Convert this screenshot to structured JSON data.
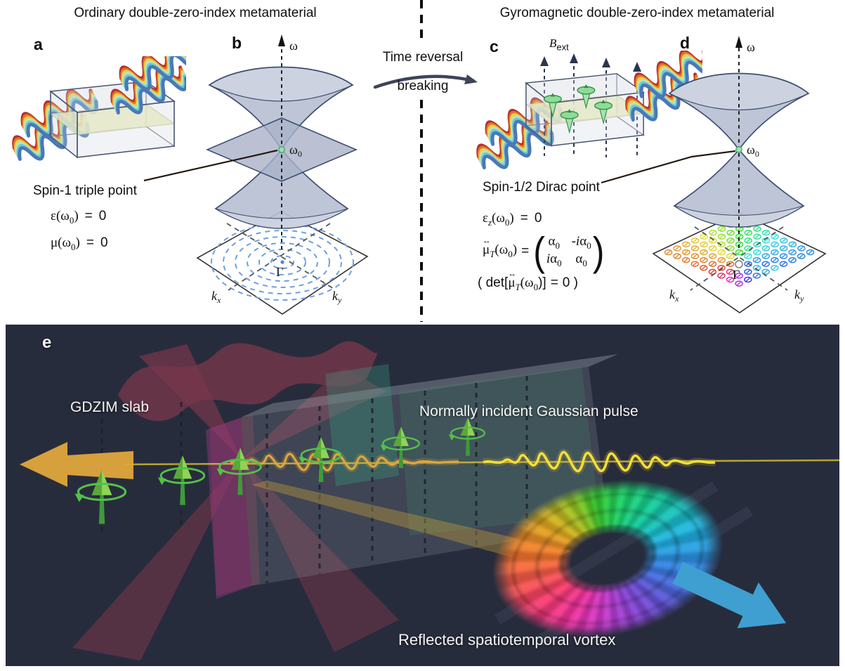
{
  "figure": {
    "left_title": "Ordinary double-zero-index metamaterial",
    "right_title": "Gyromagnetic double-zero-index metamaterial",
    "transition": {
      "line1": "Time reversal",
      "line2": "breaking"
    }
  },
  "panel_a": {
    "label": "a"
  },
  "panel_b": {
    "label": "b",
    "omega": "ω",
    "omega0_base": "ω",
    "omega0_sub": "0",
    "gamma": "Γ",
    "kx_base": "k",
    "kx_sub": "x",
    "ky_base": "k",
    "ky_sub": "y"
  },
  "panel_c": {
    "label": "c",
    "field_base": "B",
    "field_sub": "ext"
  },
  "panel_d": {
    "label": "d",
    "omega": "ω",
    "omega0_base": "ω",
    "omega0_sub": "0",
    "gamma": "Γ",
    "kx_base": "k",
    "kx_sub": "x",
    "ky_base": "k",
    "ky_sub": "y"
  },
  "annotation_left": {
    "title": "Spin-1 triple point",
    "eq_epsilon": {
      "fn": "ε(ω",
      "sub": "0",
      "close": ")",
      "eq": "=",
      "val": "0"
    },
    "eq_mu": {
      "fn": "μ(ω",
      "sub": "0",
      "close": ")",
      "eq": "=",
      "val": "0"
    }
  },
  "annotation_right": {
    "title": "Spin-1/2 Dirac point",
    "eq_epsilon": {
      "fn": "ε",
      "fsub": "z",
      "open": "(ω",
      "sub": "0",
      "close": ")",
      "eq": "=",
      "val": "0"
    },
    "eq_mu": {
      "arrow": "↔",
      "fn": "μ",
      "fsub": "T",
      "open": "(ω",
      "sub": "0",
      "close": ")",
      "eq": "=",
      "m11a": "α",
      "m11s": "0",
      "m12a": "-i",
      "m12b": "α",
      "m12s": "0",
      "m21a": "i",
      "m21b": "α",
      "m21s": "0",
      "m22a": "α",
      "m22s": "0"
    },
    "eq_det": {
      "open": "( det[",
      "arrow": "↔",
      "fn": "μ",
      "fsub": "T",
      "arg": "(ω",
      "sub": "0",
      "close": ")]",
      "eq": "=",
      "val": "0",
      "end": ")"
    }
  },
  "panel_e": {
    "label": "e",
    "slab_label": "GDZIM slab",
    "incident_label": "Normally incident Gaussian pulse",
    "reflected_label": "Reflected spatiotemporal vortex"
  },
  "colors": {
    "dark_background": "#272c3c",
    "cone_fill": "#b9c0d3",
    "cone_stroke": "#3f4d70",
    "triple_point_dot": "#93e6ae",
    "incident_pulse_yellow": "#f0df3a",
    "transmitted_pulse_orange": "#dfa63c",
    "spin_arrow_green": "#5bc24c",
    "reflected_arrow_blue": "#3f9fd0",
    "red_cone": "#e0455e",
    "kplane_circle_blue": "#6f9fdd"
  }
}
